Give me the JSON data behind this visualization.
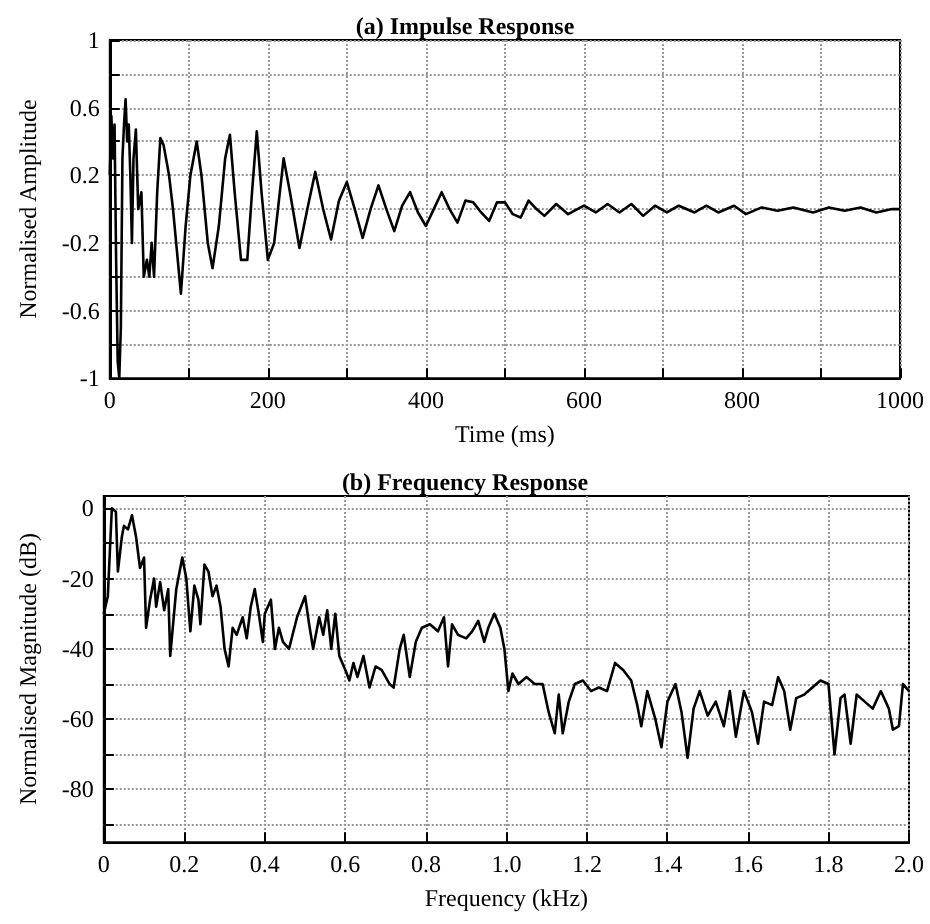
{
  "chart_data": [
    {
      "type": "line",
      "title": "(a) Impulse Response",
      "xlabel": "Time (ms)",
      "ylabel": "Normalised Amplitude",
      "xlim": [
        0,
        1000
      ],
      "ylim": [
        -1,
        1
      ],
      "xticks": [
        0,
        {
          "value": 100,
          "label": null
        },
        200,
        {
          "value": 300,
          "label": null
        },
        400,
        {
          "value": 500,
          "label": null
        },
        600,
        {
          "value": 700,
          "label": null
        },
        800,
        {
          "value": 900,
          "label": null
        },
        1000
      ],
      "yticks": [
        -1,
        {
          "value": -0.8,
          "label": null
        },
        -0.6,
        {
          "value": -0.4,
          "label": null
        },
        -0.2,
        {
          "value": 0,
          "label": null
        },
        0.2,
        {
          "value": 0.4,
          "label": null
        },
        0.6,
        {
          "value": 0.8,
          "label": null
        },
        1
      ],
      "grid": true,
      "marker": "none",
      "line_style": "solid",
      "series": [
        {
          "color": "#000000",
          "x": [
            0,
            2,
            4,
            6,
            8,
            10,
            12,
            14,
            16,
            18,
            20,
            22,
            24,
            26,
            28,
            30,
            33,
            36,
            40,
            43,
            47,
            50,
            53,
            56,
            60,
            64,
            68,
            75,
            80,
            86,
            90,
            96,
            102,
            110,
            116,
            124,
            130,
            138,
            146,
            152,
            158,
            166,
            174,
            180,
            186,
            192,
            200,
            208,
            220,
            228,
            240,
            250,
            260,
            270,
            280,
            290,
            300,
            310,
            320,
            330,
            340,
            350,
            360,
            370,
            380,
            390,
            400,
            410,
            420,
            430,
            440,
            450,
            460,
            470,
            480,
            490,
            500,
            510,
            520,
            530,
            540,
            550,
            565,
            580,
            600,
            615,
            630,
            645,
            660,
            675,
            690,
            705,
            720,
            740,
            755,
            770,
            790,
            805,
            825,
            845,
            865,
            890,
            910,
            930,
            950,
            970,
            990,
            1000
          ],
          "values": [
            0.2,
            0.55,
            0.3,
            0.5,
            -0.3,
            -0.9,
            -1.0,
            -0.7,
            0.3,
            0.5,
            0.65,
            0.4,
            0.5,
            0.2,
            -0.2,
            0.3,
            0.47,
            0.0,
            0.1,
            -0.4,
            -0.3,
            -0.4,
            -0.2,
            -0.4,
            0.1,
            0.42,
            0.38,
            0.2,
            0.0,
            -0.3,
            -0.5,
            -0.1,
            0.2,
            0.4,
            0.2,
            -0.2,
            -0.35,
            -0.1,
            0.3,
            0.44,
            0.1,
            -0.3,
            -0.3,
            0.1,
            0.46,
            0.1,
            -0.3,
            -0.2,
            0.3,
            0.1,
            -0.23,
            0.0,
            0.22,
            0.0,
            -0.18,
            0.05,
            0.16,
            0.0,
            -0.17,
            0.0,
            0.14,
            0.0,
            -0.13,
            0.02,
            0.1,
            -0.02,
            -0.1,
            0.0,
            0.1,
            0.0,
            -0.08,
            0.05,
            0.04,
            -0.02,
            -0.07,
            0.04,
            0.04,
            -0.03,
            -0.05,
            0.05,
            0.0,
            -0.04,
            0.03,
            -0.03,
            0.02,
            -0.02,
            0.03,
            -0.02,
            0.03,
            -0.04,
            0.02,
            -0.02,
            0.02,
            -0.02,
            0.02,
            -0.02,
            0.02,
            -0.03,
            0.01,
            -0.01,
            0.01,
            -0.02,
            0.01,
            -0.01,
            0.01,
            -0.02,
            0.0,
            0.0
          ]
        }
      ]
    },
    {
      "type": "line",
      "title": "(b) Frequency Response",
      "xlabel": "Frequency (kHz)",
      "ylabel": "Normalised Magnitude (dB)",
      "xlim": [
        0,
        2
      ],
      "ylim": [
        -95,
        3.5
      ],
      "xticks": [
        0,
        0.2,
        0.4,
        0.6,
        0.8,
        {
          "value": 1,
          "label": "1.0"
        },
        1.2,
        1.4,
        1.6,
        1.8,
        {
          "value": 2,
          "label": "2.0"
        }
      ],
      "yticks": [
        {
          "value": -90,
          "label": null
        },
        -80,
        {
          "value": -70,
          "label": null
        },
        -60,
        {
          "value": -50,
          "label": null
        },
        -40,
        {
          "value": -30,
          "label": null
        },
        -20,
        {
          "value": -10,
          "label": null
        },
        0
      ],
      "grid": true,
      "marker": "none",
      "line_style": "solid",
      "series": [
        {
          "color": "#000000",
          "x": [
            0,
            0.01,
            0.02,
            0.03,
            0.035,
            0.045,
            0.05,
            0.06,
            0.07,
            0.08,
            0.09,
            0.1,
            0.105,
            0.115,
            0.125,
            0.13,
            0.14,
            0.15,
            0.16,
            0.165,
            0.18,
            0.195,
            0.205,
            0.215,
            0.225,
            0.235,
            0.24,
            0.25,
            0.26,
            0.27,
            0.28,
            0.29,
            0.3,
            0.31,
            0.32,
            0.33,
            0.345,
            0.355,
            0.365,
            0.375,
            0.385,
            0.395,
            0.4,
            0.415,
            0.425,
            0.435,
            0.445,
            0.46,
            0.48,
            0.5,
            0.51,
            0.52,
            0.535,
            0.545,
            0.555,
            0.565,
            0.575,
            0.585,
            0.6,
            0.61,
            0.62,
            0.63,
            0.645,
            0.66,
            0.675,
            0.69,
            0.71,
            0.72,
            0.735,
            0.745,
            0.76,
            0.775,
            0.79,
            0.81,
            0.83,
            0.845,
            0.855,
            0.865,
            0.88,
            0.9,
            0.915,
            0.93,
            0.945,
            0.955,
            0.97,
            0.985,
            0.995,
            1.005,
            1.015,
            1.03,
            1.05,
            1.07,
            1.09,
            1.105,
            1.12,
            1.13,
            1.14,
            1.155,
            1.17,
            1.19,
            1.21,
            1.23,
            1.25,
            1.27,
            1.29,
            1.31,
            1.325,
            1.335,
            1.35,
            1.37,
            1.385,
            1.4,
            1.42,
            1.435,
            1.45,
            1.465,
            1.48,
            1.5,
            1.52,
            1.54,
            1.555,
            1.57,
            1.59,
            1.61,
            1.625,
            1.64,
            1.66,
            1.675,
            1.69,
            1.705,
            1.72,
            1.74,
            1.76,
            1.78,
            1.8,
            1.815,
            1.83,
            1.84,
            1.855,
            1.87,
            1.89,
            1.91,
            1.93,
            1.95,
            1.96,
            1.975,
            1.985,
            2.0
          ],
          "values": [
            -30,
            -25,
            0,
            -1,
            -18,
            -8,
            -5,
            -6,
            -2,
            -8,
            -17,
            -14,
            -34,
            -26,
            -20,
            -28,
            -21,
            -29,
            -23,
            -42,
            -23,
            -14,
            -20,
            -35,
            -22,
            -26,
            -33,
            -16,
            -18,
            -25,
            -22,
            -28,
            -40,
            -45,
            -34,
            -36,
            -31,
            -37,
            -28,
            -23,
            -30,
            -38,
            -30,
            -26,
            -40,
            -34,
            -38,
            -40,
            -31,
            -25,
            -33,
            -40,
            -31,
            -36,
            -29,
            -40,
            -30,
            -42,
            -46,
            -49,
            -44,
            -48,
            -42,
            -51,
            -45,
            -46,
            -50,
            -51,
            -40,
            -36,
            -48,
            -38,
            -34,
            -33,
            -35,
            -31,
            -45,
            -33,
            -36,
            -37,
            -35,
            -32,
            -38,
            -34,
            -30,
            -34,
            -40,
            -52,
            -47,
            -50,
            -48,
            -50,
            -50,
            -58,
            -64,
            -53,
            -64,
            -55,
            -50,
            -49,
            -52,
            -51,
            -52,
            -44,
            -46,
            -49,
            -56,
            -62,
            -52,
            -60,
            -68,
            -55,
            -50,
            -58,
            -71,
            -57,
            -52,
            -59,
            -55,
            -62,
            -52,
            -65,
            -52,
            -58,
            -67,
            -55,
            -56,
            -48,
            -52,
            -63,
            -54,
            -53,
            -51,
            -49,
            -50,
            -70,
            -54,
            -53,
            -67,
            -53,
            -55,
            -57,
            -52,
            -57,
            -63,
            -62,
            -50,
            -52
          ]
        }
      ]
    }
  ]
}
